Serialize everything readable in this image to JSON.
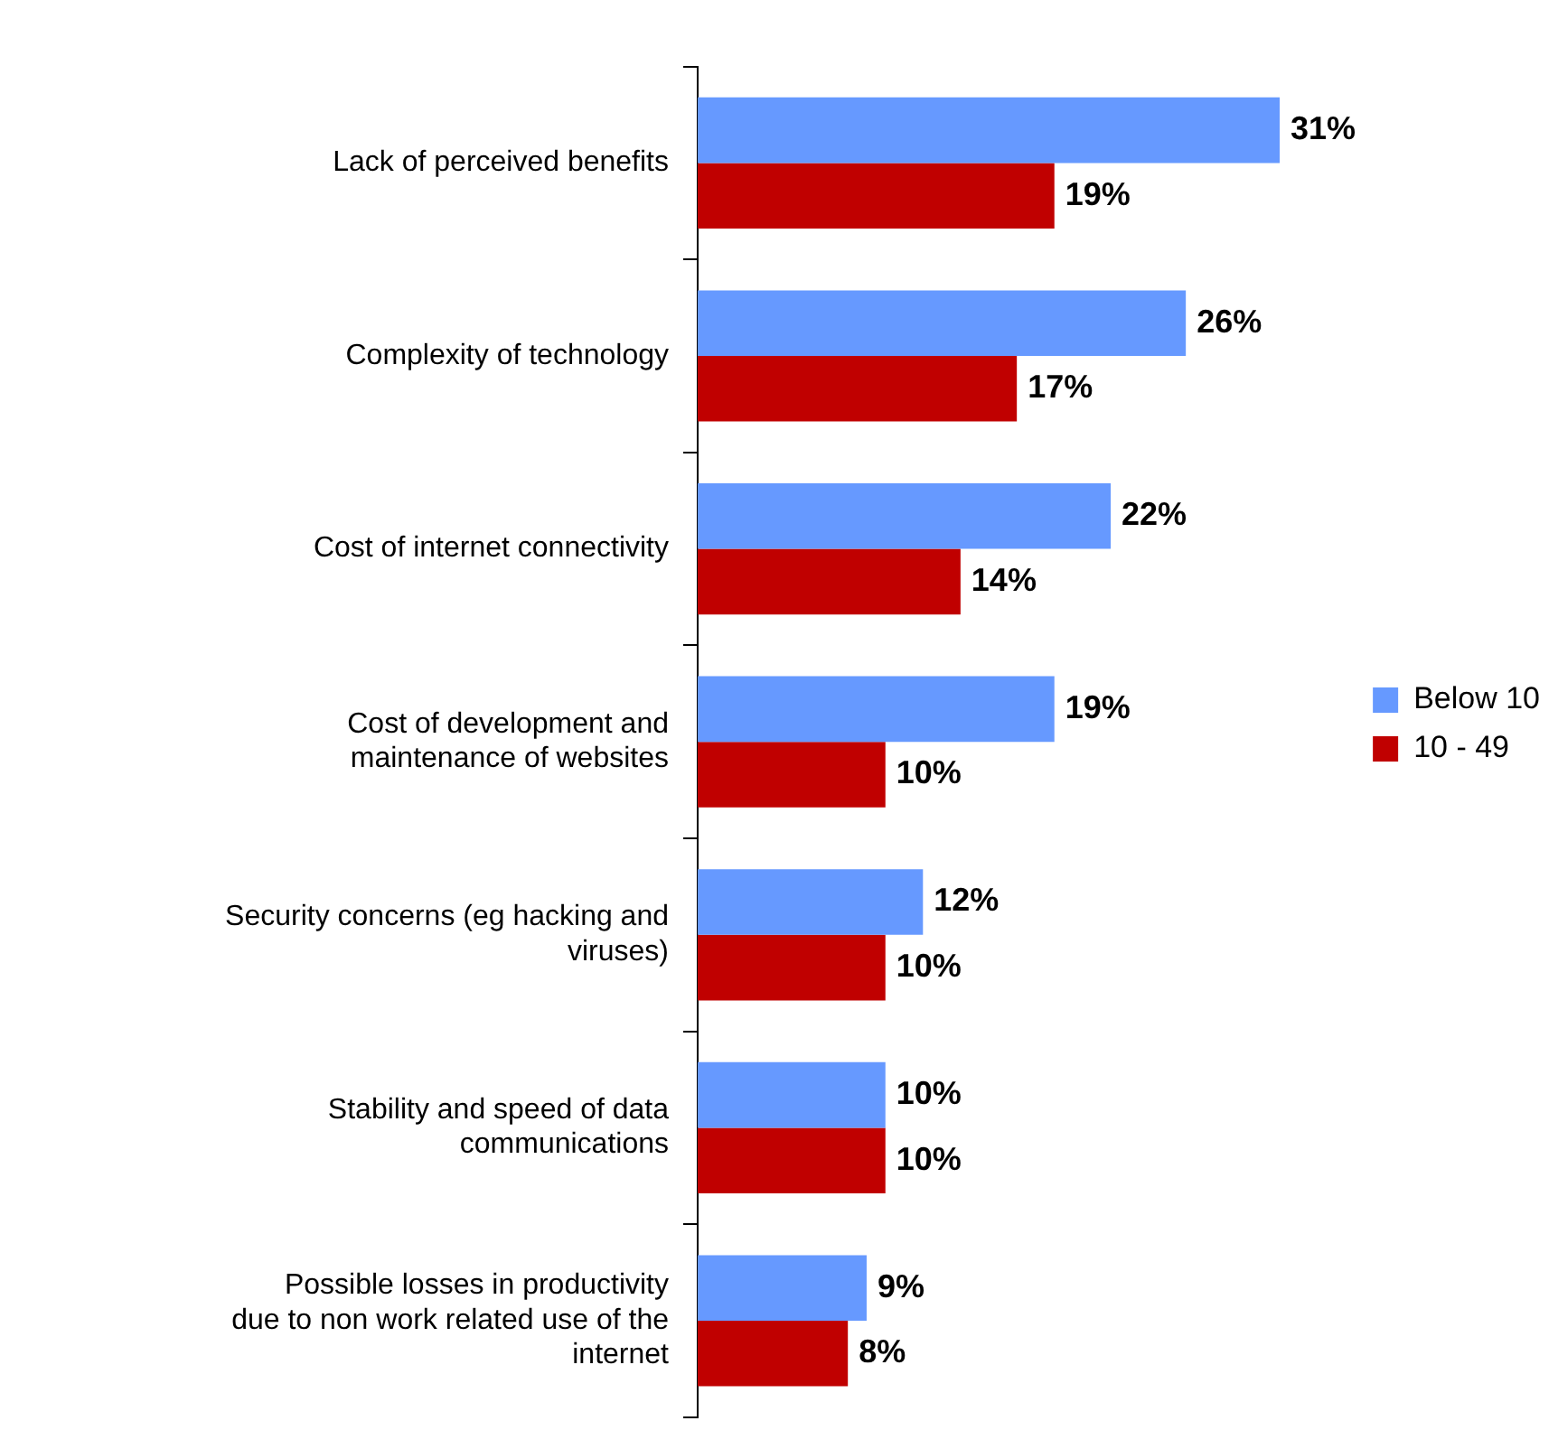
{
  "chart_data": {
    "type": "bar",
    "orientation": "horizontal",
    "categories": [
      "Lack of perceived benefits",
      "Complexity of technology",
      "Cost of internet connectivity",
      "Cost of development and maintenance of websites",
      "Security concerns (eg hacking and viruses)",
      "Stability and speed of data communications",
      "Possible losses in productivity due to non work related use of the internet"
    ],
    "series": [
      {
        "name": "Below 10",
        "color": "#6699ff",
        "values": [
          31,
          26,
          22,
          19,
          12,
          10,
          9
        ],
        "value_labels": [
          "31%",
          "26%",
          "22%",
          "19%",
          "12%",
          "10%",
          "9%"
        ]
      },
      {
        "name": "10 - 49",
        "color": "#c00000",
        "values": [
          19,
          17,
          14,
          10,
          10,
          10,
          8
        ],
        "value_labels": [
          "19%",
          "17%",
          "14%",
          "10%",
          "10%",
          "10%",
          "8%"
        ]
      }
    ],
    "legend": "right"
  }
}
